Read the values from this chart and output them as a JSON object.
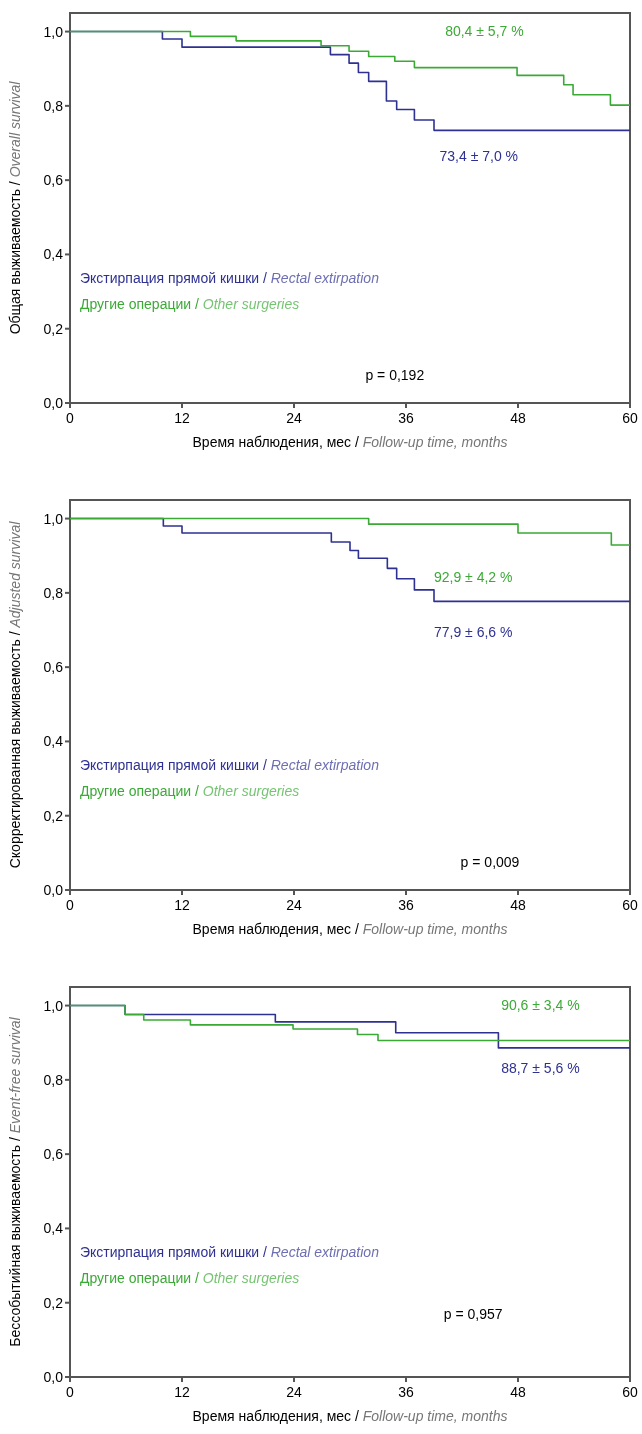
{
  "chart_data": [
    {
      "type": "step",
      "xlabel": "Время наблюдения, мес / Follow-up time, months",
      "ylabel": "Общая выживаемость / Overall survival",
      "xlim": [
        0,
        60
      ],
      "ylim": [
        0,
        1.05
      ],
      "xticks": [
        0,
        12,
        24,
        36,
        48,
        60
      ],
      "yticks": [
        {
          "value": 0,
          "label": "0,0"
        },
        {
          "value": 0.2,
          "label": "0,2"
        },
        {
          "value": 0.4,
          "label": "0,4"
        },
        {
          "value": 0.6,
          "label": "0,6"
        },
        {
          "value": 0.8,
          "label": "0,8"
        },
        {
          "value": 1,
          "label": "1,0"
        }
      ],
      "legend": "bottom left",
      "line_style": "solid",
      "series": [
        {
          "name": "Экстирпация прямой кишки / Rectal extirpation",
          "color": "#2e3192",
          "x": [
            0,
            9.9,
            12.0,
            27.9,
            29.9,
            30.9,
            32.0,
            33.9,
            35.0,
            36.9,
            39.0,
            60
          ],
          "values": [
            1,
            0.98,
            0.958,
            0.938,
            0.915,
            0.89,
            0.866,
            0.813,
            0.79,
            0.762,
            0.734,
            0.734
          ]
        },
        {
          "name": "Другие операции / Other surgeries",
          "color": "#3aaa35",
          "x": [
            0,
            12.9,
            17.8,
            26.9,
            29.9,
            32.0,
            34.8,
            36.9,
            47.9,
            52.9,
            53.9,
            57.9,
            60
          ],
          "values": [
            1,
            0.987,
            0.975,
            0.962,
            0.947,
            0.933,
            0.92,
            0.903,
            0.882,
            0.857,
            0.83,
            0.802,
            0.802
          ]
        }
      ],
      "annotations": [
        "80,4 ± 5,7 %",
        "73,4 ± 7,0 %",
        "p = 0,192"
      ]
    },
    {
      "type": "step",
      "xlabel": "Время наблюдения, мес / Follow-up time, months",
      "ylabel": "Скорректированная выживаемость / Adjusted survival",
      "xlim": [
        0,
        60
      ],
      "ylim": [
        0,
        1.05
      ],
      "xticks": [
        0,
        12,
        24,
        36,
        48,
        60
      ],
      "yticks": [
        {
          "value": 0,
          "label": "0,0"
        },
        {
          "value": 0.2,
          "label": "0,2"
        },
        {
          "value": 0.4,
          "label": "0,4"
        },
        {
          "value": 0.6,
          "label": "0,6"
        },
        {
          "value": 0.8,
          "label": "0,8"
        },
        {
          "value": 1,
          "label": "1,0"
        }
      ],
      "legend": "bottom left",
      "line_style": "solid",
      "series": [
        {
          "name": "Экстирпация прямой кишки / Rectal extirpation",
          "color": "#2e3192",
          "x": [
            0,
            10.0,
            12.0,
            28.0,
            30.0,
            30.9,
            34.0,
            35.0,
            36.9,
            39.0,
            60
          ],
          "values": [
            1,
            0.98,
            0.961,
            0.937,
            0.914,
            0.893,
            0.866,
            0.838,
            0.808,
            0.777,
            0.777
          ]
        },
        {
          "name": "Другие операции / Other surgeries",
          "color": "#3aaa35",
          "x": [
            0,
            32.0,
            48.0,
            58.0,
            60
          ],
          "values": [
            1,
            0.985,
            0.961,
            0.929,
            0.929
          ]
        }
      ],
      "annotations": [
        "92,9 ± 4,2 %",
        "77,9 ± 6,6 %",
        "p = 0,009"
      ]
    },
    {
      "type": "step",
      "xlabel": "Время наблюдения, мес / Follow-up time, months",
      "ylabel": "Бессобытийная выживаемость / Event-free survival",
      "xlim": [
        0,
        60
      ],
      "ylim": [
        0,
        1.05
      ],
      "xticks": [
        0,
        12,
        24,
        36,
        48,
        60
      ],
      "yticks": [
        {
          "value": 0,
          "label": "0,0"
        },
        {
          "value": 0.2,
          "label": "0,2"
        },
        {
          "value": 0.4,
          "label": "0,4"
        },
        {
          "value": 0.6,
          "label": "0,6"
        },
        {
          "value": 0.8,
          "label": "0,8"
        },
        {
          "value": 1,
          "label": "1,0"
        }
      ],
      "legend": "bottom left",
      "line_style": "solid",
      "series": [
        {
          "name": "Экстирпация прямой кишки / Rectal extirpation",
          "color": "#2e3192",
          "x": [
            0,
            5.9,
            22.0,
            34.9,
            45.9,
            60
          ],
          "values": [
            1,
            0.976,
            0.956,
            0.927,
            0.886,
            0.886
          ]
        },
        {
          "name": "Другие операции / Other surgeries",
          "color": "#3aaa35",
          "x": [
            0,
            5.9,
            7.9,
            12.9,
            23.9,
            30.8,
            33.0,
            60
          ],
          "values": [
            1,
            0.976,
            0.961,
            0.948,
            0.937,
            0.922,
            0.906,
            0.906
          ]
        }
      ],
      "annotations": [
        "90,6 ± 3,4 %",
        "88,7 ± 5,6 %",
        "p = 0,957"
      ]
    }
  ]
}
